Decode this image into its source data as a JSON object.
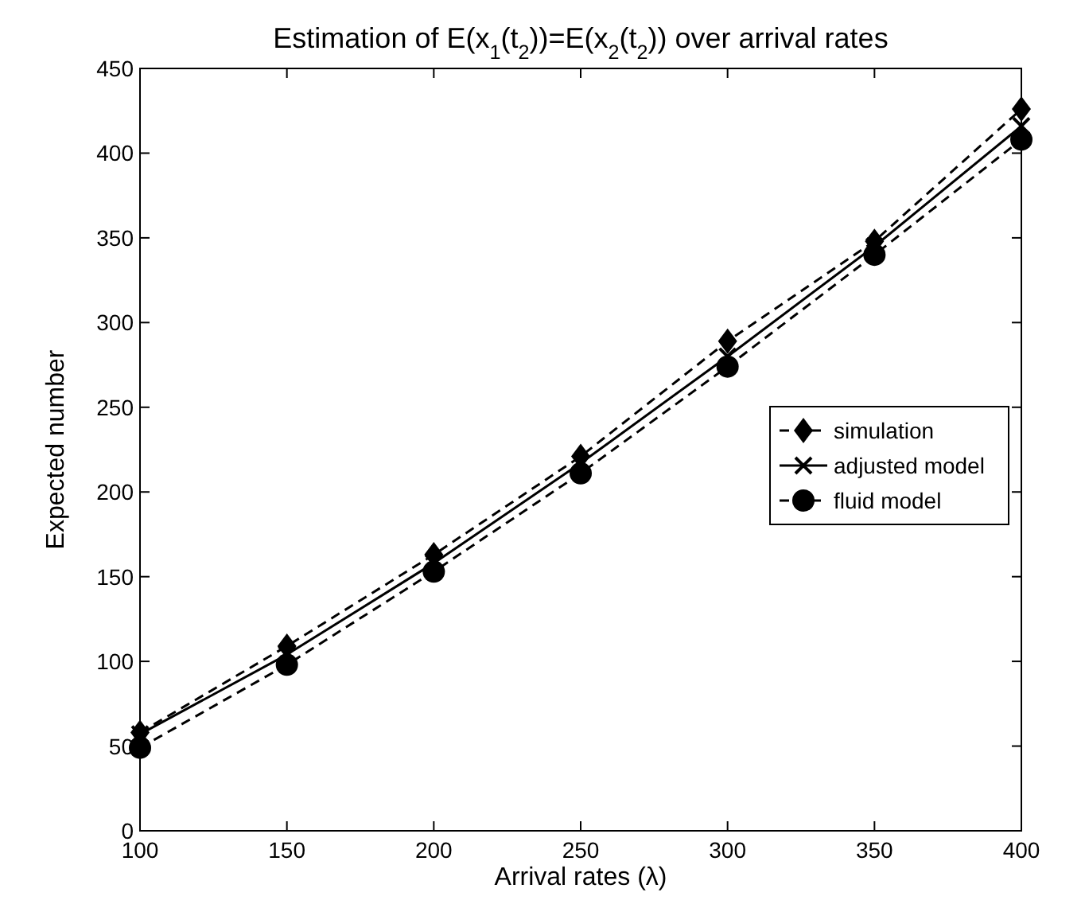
{
  "chart_data": {
    "type": "line",
    "title": "Estimation of E(x$_{1}$(t$_{2}$))=E(x$_{2}$(t$_{2}$)) over arrival rates",
    "xlabel": "Arrival rates (λ)",
    "ylabel": "Expected number",
    "x": [
      100,
      150,
      200,
      250,
      300,
      350,
      400
    ],
    "series": [
      {
        "name": "simulation",
        "color": "#000000",
        "marker": "diamond",
        "line_style": "dashed",
        "values": [
          58,
          109,
          163,
          221,
          289,
          348,
          426
        ]
      },
      {
        "name": "adjusted model",
        "color": "#000000",
        "marker": "cross",
        "line_style": "solid",
        "values": [
          57,
          104,
          158,
          217,
          280,
          345,
          416
        ]
      },
      {
        "name": "fluid model",
        "color": "#000000",
        "marker": "circle",
        "line_style": "dashed",
        "values": [
          49,
          98,
          153,
          211,
          274,
          340,
          408
        ]
      }
    ],
    "xlim": [
      100,
      400
    ],
    "xticks": [
      100,
      150,
      200,
      250,
      300,
      350,
      400
    ],
    "ylim": [
      0,
      450
    ],
    "yticks": [
      0,
      50,
      100,
      150,
      200,
      250,
      300,
      350,
      400,
      450
    ],
    "grid": false,
    "legend": "right"
  }
}
